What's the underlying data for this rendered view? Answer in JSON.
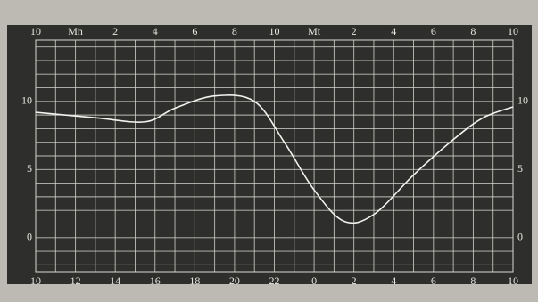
{
  "chart_data": {
    "type": "line",
    "x": [
      0,
      3,
      5.5,
      7,
      9,
      11,
      12.5,
      14,
      15.5,
      17,
      19,
      21,
      22.5,
      24
    ],
    "series": [
      {
        "color": "#f2f2ee",
        "values": [
          9.2,
          8.8,
          8.5,
          9.5,
          10.4,
          10,
          7,
          3.5,
          1.2,
          1.7,
          4.6,
          7.2,
          8.8,
          9.6
        ]
      }
    ],
    "xlim": [
      0,
      24
    ],
    "ylim": [
      -2.5,
      14.5
    ],
    "xticks": [
      {
        "value": 0,
        "label": "10"
      },
      {
        "value": 2,
        "label": "12"
      },
      {
        "value": 4,
        "label": "14"
      },
      {
        "value": 6,
        "label": "16"
      },
      {
        "value": 8,
        "label": "18"
      },
      {
        "value": 10,
        "label": "20"
      },
      {
        "value": 12,
        "label": "22"
      },
      {
        "value": 14,
        "label": "0"
      },
      {
        "value": 16,
        "label": "2"
      },
      {
        "value": 18,
        "label": "4"
      },
      {
        "value": 20,
        "label": "6"
      },
      {
        "value": 22,
        "label": "8"
      },
      {
        "value": 24,
        "label": "10"
      }
    ],
    "xticks_top": [
      {
        "value": 0,
        "label": "10"
      },
      {
        "value": 2,
        "label": "Mn"
      },
      {
        "value": 4,
        "label": "2"
      },
      {
        "value": 6,
        "label": "4"
      },
      {
        "value": 8,
        "label": "6"
      },
      {
        "value": 10,
        "label": "8"
      },
      {
        "value": 12,
        "label": "10"
      },
      {
        "value": 14,
        "label": "Mt"
      },
      {
        "value": 16,
        "label": "2"
      },
      {
        "value": 18,
        "label": "4"
      },
      {
        "value": 20,
        "label": "6"
      },
      {
        "value": 22,
        "label": "8"
      },
      {
        "value": 24,
        "label": "10"
      }
    ],
    "yticks": [
      0,
      5,
      10
    ],
    "y2ticks": [
      0,
      5,
      10
    ],
    "grid_x": [
      0,
      1,
      2,
      3,
      4,
      5,
      6,
      7,
      8,
      9,
      10,
      11,
      12,
      13,
      14,
      15,
      16,
      17,
      18,
      19,
      20,
      21,
      22,
      23,
      24
    ],
    "grid_y": [
      -2,
      -1,
      0,
      1,
      2,
      3,
      4,
      5,
      6,
      7,
      8,
      9,
      10,
      11,
      12,
      13,
      14
    ]
  }
}
